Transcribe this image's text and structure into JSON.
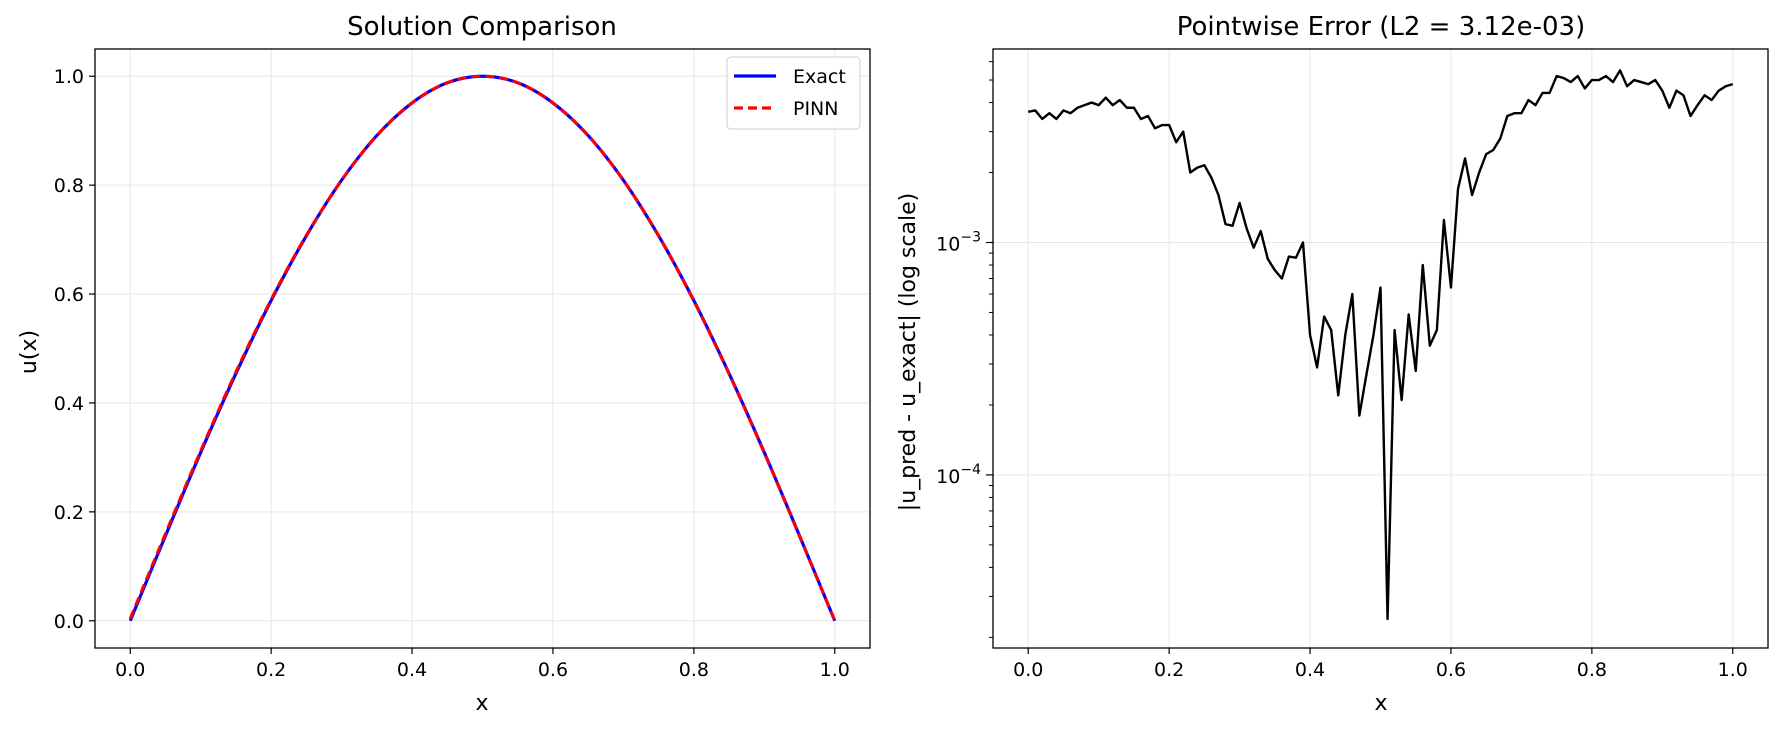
{
  "colors": {
    "exact": "#0000ff",
    "pinn": "#ff0000",
    "error": "#000000",
    "grid": "#e6e6e6",
    "axes": "#000000"
  },
  "chart_data": [
    {
      "type": "line",
      "title": "Solution Comparison",
      "xlabel": "x",
      "ylabel": "u(x)",
      "xlim": [
        -0.05,
        1.05
      ],
      "ylim": [
        -0.05,
        1.05
      ],
      "xticks": [
        0.0,
        0.2,
        0.4,
        0.6,
        0.8,
        1.0
      ],
      "xtick_labels": [
        "0.0",
        "0.2",
        "0.4",
        "0.6",
        "0.8",
        "1.0"
      ],
      "yticks": [
        0.0,
        0.2,
        0.4,
        0.6,
        0.8,
        1.0
      ],
      "ytick_labels": [
        "0.0",
        "0.2",
        "0.4",
        "0.6",
        "0.8",
        "1.0"
      ],
      "grid": true,
      "legend": "top-right",
      "x": [
        0.0,
        0.05,
        0.1,
        0.15,
        0.2,
        0.25,
        0.3,
        0.35,
        0.4,
        0.45,
        0.5,
        0.55,
        0.6,
        0.65,
        0.7,
        0.75,
        0.8,
        0.85,
        0.9,
        0.95,
        1.0
      ],
      "series": [
        {
          "name": "Exact",
          "style": "solid",
          "values": [
            0.0,
            0.156,
            0.309,
            0.454,
            0.588,
            0.707,
            0.809,
            0.891,
            0.951,
            0.988,
            1.0,
            0.988,
            0.951,
            0.891,
            0.809,
            0.707,
            0.588,
            0.454,
            0.309,
            0.156,
            0.0
          ]
        },
        {
          "name": "PINN",
          "style": "dashed",
          "values": [
            0.004,
            0.16,
            0.312,
            0.457,
            0.59,
            0.708,
            0.809,
            0.891,
            0.951,
            0.988,
            1.0,
            0.988,
            0.951,
            0.891,
            0.809,
            0.707,
            0.587,
            0.453,
            0.308,
            0.155,
            0.0
          ]
        }
      ]
    },
    {
      "type": "line",
      "title": "Pointwise Error (L2 = 3.12e-03)",
      "xlabel": "x",
      "ylabel": "|u_pred - u_exact| (log scale)",
      "yscale": "log",
      "xlim": [
        -0.05,
        1.05
      ],
      "ylim": [
        1.8e-05,
        0.0068
      ],
      "xticks": [
        0.0,
        0.2,
        0.4,
        0.6,
        0.8,
        1.0
      ],
      "xtick_labels": [
        "0.0",
        "0.2",
        "0.4",
        "0.6",
        "0.8",
        "1.0"
      ],
      "yticks_major": [
        0.0001,
        0.001
      ],
      "ytick_labels": [
        {
          "base": "10",
          "exp": "−4"
        },
        {
          "base": "10",
          "exp": "−3"
        }
      ],
      "grid": true,
      "series": [
        {
          "x": [
            0.0,
            0.01,
            0.02,
            0.03,
            0.04,
            0.05,
            0.06,
            0.07,
            0.08,
            0.09,
            0.1,
            0.11,
            0.12,
            0.13,
            0.14,
            0.15,
            0.16,
            0.17,
            0.18,
            0.19,
            0.2,
            0.21,
            0.22,
            0.23,
            0.24,
            0.25,
            0.26,
            0.27,
            0.28,
            0.29,
            0.3,
            0.31,
            0.32,
            0.33,
            0.34,
            0.35,
            0.36,
            0.37,
            0.38,
            0.39,
            0.4,
            0.41,
            0.42,
            0.43,
            0.44,
            0.45,
            0.46,
            0.47,
            0.48,
            0.49,
            0.5,
            0.51,
            0.52,
            0.53,
            0.54,
            0.55,
            0.56,
            0.57,
            0.58,
            0.59,
            0.6,
            0.61,
            0.62,
            0.63,
            0.64,
            0.65,
            0.66,
            0.67,
            0.68,
            0.69,
            0.7,
            0.71,
            0.72,
            0.73,
            0.74,
            0.75,
            0.76,
            0.77,
            0.78,
            0.79,
            0.8,
            0.81,
            0.82,
            0.83,
            0.84,
            0.85,
            0.86,
            0.87,
            0.88,
            0.89,
            0.9,
            0.91,
            0.92,
            0.93,
            0.94,
            0.95,
            0.96,
            0.97,
            0.98,
            0.99,
            1.0
          ],
          "values": [
            0.00365,
            0.0037,
            0.0034,
            0.0036,
            0.0034,
            0.0037,
            0.0036,
            0.0038,
            0.0039,
            0.004,
            0.0039,
            0.0042,
            0.0039,
            0.0041,
            0.0038,
            0.0038,
            0.0034,
            0.0035,
            0.0031,
            0.0032,
            0.0032,
            0.0027,
            0.003,
            0.002,
            0.0021,
            0.00215,
            0.0019,
            0.0016,
            0.0012,
            0.00118,
            0.00148,
            0.00115,
            0.00095,
            0.00112,
            0.00085,
            0.00076,
            0.0007,
            0.00087,
            0.00086,
            0.001,
            0.0004,
            0.00029,
            0.00048,
            0.00042,
            0.00022,
            0.0004,
            0.0006,
            0.00018,
            0.00027,
            0.0004,
            0.00064,
            2.4e-05,
            0.00042,
            0.00021,
            0.00049,
            0.00028,
            0.0008,
            0.00036,
            0.00042,
            0.00125,
            0.00064,
            0.0017,
            0.0023,
            0.0016,
            0.002,
            0.0024,
            0.0025,
            0.0028,
            0.0035,
            0.0036,
            0.0036,
            0.0041,
            0.0039,
            0.0044,
            0.0044,
            0.0052,
            0.0051,
            0.0049,
            0.0052,
            0.0046,
            0.005,
            0.005,
            0.0052,
            0.0049,
            0.0055,
            0.0047,
            0.005,
            0.0049,
            0.0048,
            0.005,
            0.0045,
            0.0038,
            0.0045,
            0.0043,
            0.0035,
            0.0039,
            0.0043,
            0.0041,
            0.0045,
            0.0047,
            0.0048
          ]
        }
      ]
    }
  ]
}
